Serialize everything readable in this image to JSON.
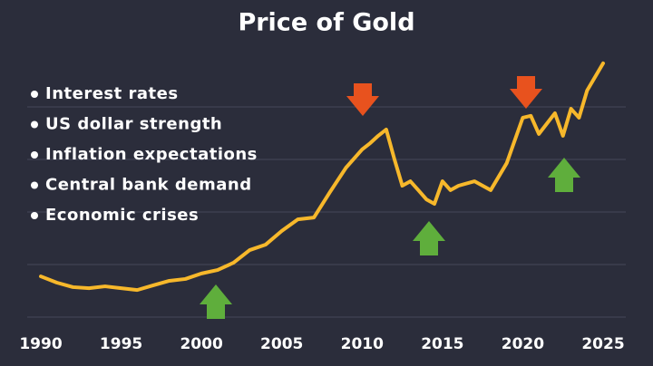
{
  "chart_data": {
    "type": "line",
    "title": "Price of Gold",
    "annotations": [
      "Interest rates",
      "US dollar strength",
      "Inflation expectations",
      "Central bank demand",
      "Economic crises"
    ],
    "x": [
      1990,
      1991,
      1992,
      1993,
      1994,
      1995,
      1996,
      1997,
      1998,
      1999,
      2000,
      2001,
      2002,
      2003,
      2004,
      2005,
      2006,
      2007,
      2008,
      2009,
      2010,
      2010.5,
      2011,
      2011.5,
      2012,
      2012.5,
      2013,
      2013.5,
      2014,
      2014.5,
      2015,
      2015.5,
      2016,
      2017,
      2018,
      2019,
      2020,
      2020.5,
      2021,
      2022,
      2022.5,
      2023,
      2023.5,
      2024,
      2025
    ],
    "series": [
      {
        "name": "Gold",
        "color": "#f7b82b",
        "values": [
          15.5,
          13.1,
          11.4,
          11.0,
          11.7,
          11.0,
          10.3,
          12.1,
          13.8,
          14.5,
          16.6,
          17.9,
          20.7,
          25.5,
          27.6,
          32.8,
          37.2,
          37.9,
          47.6,
          56.9,
          63.8,
          66.2,
          69.0,
          71.4,
          60.3,
          50.0,
          51.7,
          48.3,
          44.8,
          43.1,
          51.7,
          48.3,
          50.0,
          51.7,
          48.3,
          58.6,
          75.9,
          76.6,
          69.7,
          77.6,
          69.0,
          79.3,
          75.9,
          86.2,
          96.6
        ]
      }
    ],
    "xlim": [
      1990,
      2025
    ],
    "xticks": [
      1990,
      1995,
      2000,
      2005,
      2010,
      2015,
      2020,
      2025
    ],
    "ylim": [
      0,
      100
    ],
    "yticks": [
      0,
      20,
      40,
      60,
      80
    ],
    "grid": true
  }
}
